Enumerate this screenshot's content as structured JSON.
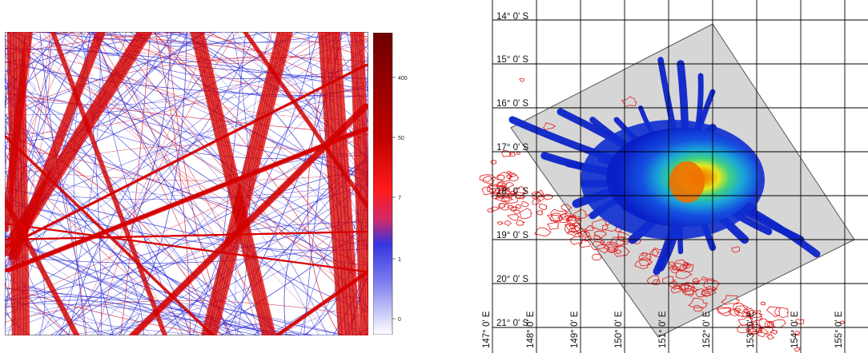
{
  "colors": {
    "density_low": "#2a2acb",
    "density_high": "#e00000",
    "colorbar_top": "#7a0000",
    "colorbar_mid": "#ff2020",
    "colorbar_blue": "#3030e0",
    "colorbar_bottom": "#ffffff",
    "heat_low": "#0b20c8",
    "heat_mid": "#1fc8c0",
    "heat_hi": "#e8e820",
    "heat_top": "#f07000",
    "grid": "#000000",
    "domain_fill": "#d6d6d6",
    "coast": "#e01a1a"
  },
  "left_panel": {
    "name": "vessel-track-density-map",
    "colorbar": {
      "tick_labels": [
        "400",
        "50",
        "7",
        "1",
        "0"
      ]
    }
  },
  "right_panel": {
    "name": "particle-dispersal-map",
    "latitude_labels": [
      "14° 0' S",
      "15° 0' S",
      "16° 0' S",
      "17° 0' S",
      "18° 0' S",
      "19° 0' S",
      "20° 0' S",
      "21° 0' S"
    ],
    "longitude_labels": [
      "147° 0' E",
      "148° 0' E",
      "149° 0' E",
      "150° 0' E",
      "151° 0' E",
      "152° 0' E",
      "153° 0' E",
      "154° 0' E",
      "155° 0' E"
    ]
  }
}
